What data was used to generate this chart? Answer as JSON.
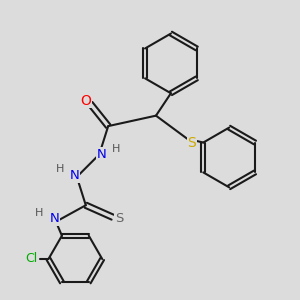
{
  "bg_color": "#dcdcdc",
  "bond_color": "#1a1a1a",
  "bond_width": 1.5,
  "atom_colors": {
    "O": "#ff0000",
    "N": "#0000ee",
    "S_yellow": "#ccaa00",
    "S_gray": "#666666",
    "Cl": "#00aa00",
    "H": "#555555"
  },
  "font_size": 8.5,
  "fig_width": 3.0,
  "fig_height": 3.0,
  "dpi": 100
}
